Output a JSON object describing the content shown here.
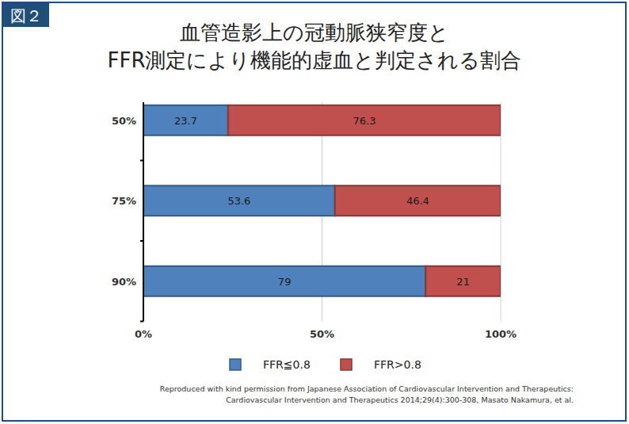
{
  "chart_data": {
    "type": "bar",
    "orientation": "horizontal",
    "stacked": true,
    "badge": "図２",
    "title": [
      "血管造影上の冠動脈狭窄度と",
      "FFR測定により機能的虚血と判定される割合"
    ],
    "categories": [
      "50%",
      "75%",
      "90%"
    ],
    "series": [
      {
        "name": "FFR≦0.8",
        "color": "#4f81bd",
        "values": [
          23.7,
          53.6,
          79
        ]
      },
      {
        "name": "FFR>0.8",
        "color": "#c0504d",
        "values": [
          76.3,
          46.4,
          21
        ]
      }
    ],
    "xlim": [
      0,
      100
    ],
    "xticks": [
      {
        "value": 0,
        "label": "0%"
      },
      {
        "value": 50,
        "label": "50%"
      },
      {
        "value": 100,
        "label": "100%"
      }
    ],
    "grid": true,
    "data_labels": true,
    "legend": "bottom",
    "source": [
      "Reproduced with kind permission from Japanese Association of Cardiovascular Intervention and Therapeutics:",
      "Cardiovascular Intervention and Therapeutics 2014;29(4):300-308, Masato Nakamura, et al."
    ]
  }
}
